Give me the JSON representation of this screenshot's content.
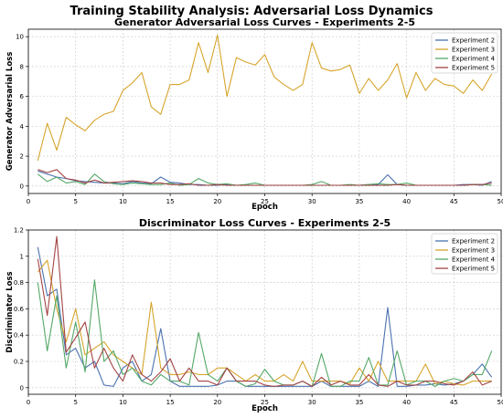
{
  "figure": {
    "suptitle": "Training Stability Analysis: Adversarial Loss Dynamics"
  },
  "colors": {
    "Experiment 2": "#4c72b0",
    "Experiment 3": "#d6a52b",
    "Experiment 4": "#55a868",
    "Experiment 5": "#a24444"
  },
  "chart_data": [
    {
      "type": "line",
      "title": "Generator Adversarial Loss Curves - Experiments 2-5",
      "xlabel": "Epoch",
      "ylabel": "Generator Adversarial Loss",
      "xlim": [
        0,
        50
      ],
      "ylim": [
        -0.5,
        10.5
      ],
      "xticks": [
        0,
        5,
        10,
        15,
        20,
        25,
        30,
        35,
        40,
        45,
        50
      ],
      "yticks": [
        0,
        2,
        4,
        6,
        8,
        10
      ],
      "grid": true,
      "legend": "top-right",
      "x": [
        1,
        2,
        3,
        4,
        5,
        6,
        7,
        8,
        9,
        10,
        11,
        12,
        13,
        14,
        15,
        16,
        17,
        18,
        19,
        20,
        21,
        22,
        23,
        24,
        25,
        26,
        27,
        28,
        29,
        30,
        31,
        32,
        33,
        34,
        35,
        36,
        37,
        38,
        39,
        40,
        41,
        42,
        43,
        44,
        45,
        46,
        47,
        48,
        49
      ],
      "series": [
        {
          "name": "Experiment 2",
          "values": [
            1.0,
            0.8,
            0.6,
            0.5,
            0.35,
            0.3,
            0.25,
            0.2,
            0.2,
            0.15,
            0.3,
            0.2,
            0.15,
            0.6,
            0.25,
            0.2,
            0.1,
            0.1,
            0.05,
            0.05,
            0.1,
            0.05,
            0.05,
            0.05,
            0.05,
            0.05,
            0.05,
            0.05,
            0.05,
            0.05,
            0.05,
            0.05,
            0.05,
            0.05,
            0.05,
            0.1,
            0.1,
            0.75,
            0.1,
            0.05,
            0.05,
            0.05,
            0.05,
            0.05,
            0.05,
            0.1,
            0.1,
            0.05,
            0.3
          ]
        },
        {
          "name": "Experiment 3",
          "values": [
            1.7,
            4.2,
            2.4,
            4.6,
            4.1,
            3.7,
            4.4,
            4.8,
            5.0,
            6.4,
            6.9,
            7.6,
            5.3,
            4.8,
            6.8,
            6.8,
            7.1,
            9.6,
            7.6,
            10.1,
            6.0,
            8.6,
            8.3,
            8.1,
            8.8,
            7.3,
            6.8,
            6.4,
            6.8,
            9.6,
            7.9,
            7.7,
            7.8,
            8.1,
            6.2,
            7.2,
            6.4,
            7.1,
            8.2,
            5.9,
            7.6,
            6.4,
            7.2,
            6.8,
            6.7,
            6.2,
            7.1,
            6.4,
            7.5
          ]
        },
        {
          "name": "Experiment 4",
          "values": [
            0.8,
            0.3,
            0.6,
            0.2,
            0.3,
            0.1,
            0.8,
            0.3,
            0.15,
            0.1,
            0.2,
            0.15,
            0.1,
            0.1,
            0.2,
            0.05,
            0.1,
            0.5,
            0.2,
            0.1,
            0.15,
            0.05,
            0.1,
            0.2,
            0.05,
            0.05,
            0.05,
            0.05,
            0.05,
            0.1,
            0.3,
            0.05,
            0.05,
            0.1,
            0.05,
            0.1,
            0.15,
            0.1,
            0.1,
            0.2,
            0.05,
            0.05,
            0.05,
            0.05,
            0.05,
            0.05,
            0.1,
            0.1,
            0.05
          ]
        },
        {
          "name": "Experiment 5",
          "values": [
            1.1,
            0.9,
            1.1,
            0.5,
            0.4,
            0.2,
            0.4,
            0.2,
            0.25,
            0.3,
            0.35,
            0.3,
            0.2,
            0.2,
            0.1,
            0.1,
            0.15,
            0.05,
            0.05,
            0.1,
            0.05,
            0.05,
            0.05,
            0.05,
            0.05,
            0.05,
            0.05,
            0.05,
            0.05,
            0.05,
            0.05,
            0.05,
            0.05,
            0.05,
            0.05,
            0.05,
            0.05,
            0.05,
            0.1,
            0.05,
            0.05,
            0.05,
            0.05,
            0.05,
            0.05,
            0.05,
            0.1,
            0.1,
            0.2
          ]
        }
      ]
    },
    {
      "type": "line",
      "title": "Discriminator Loss Curves - Experiments 2-5",
      "xlabel": "Epoch",
      "ylabel": "Discriminator Loss",
      "xlim": [
        0,
        50
      ],
      "ylim": [
        -0.05,
        1.2
      ],
      "xticks": [
        0,
        5,
        10,
        15,
        20,
        25,
        30,
        35,
        40,
        45,
        50
      ],
      "yticks": [
        0.0,
        0.2,
        0.4,
        0.6,
        0.8,
        1.0,
        1.2
      ],
      "grid": true,
      "legend": "top-right",
      "x": [
        1,
        2,
        3,
        4,
        5,
        6,
        7,
        8,
        9,
        10,
        11,
        12,
        13,
        14,
        15,
        16,
        17,
        18,
        19,
        20,
        21,
        22,
        23,
        24,
        25,
        26,
        27,
        28,
        29,
        30,
        31,
        32,
        33,
        34,
        35,
        36,
        37,
        38,
        39,
        40,
        41,
        42,
        43,
        44,
        45,
        46,
        47,
        48,
        49
      ],
      "series": [
        {
          "name": "Experiment 2",
          "values": [
            1.07,
            0.7,
            0.75,
            0.25,
            0.3,
            0.15,
            0.2,
            0.02,
            0.01,
            0.15,
            0.2,
            0.05,
            0.1,
            0.45,
            0.05,
            0.01,
            0.01,
            0.01,
            0.01,
            0.02,
            0.05,
            0.05,
            0.01,
            0.01,
            0.01,
            0.01,
            0.01,
            0.01,
            0.01,
            0.01,
            0.05,
            0.01,
            0.01,
            0.01,
            0.01,
            0.05,
            0.01,
            0.61,
            0.01,
            0.01,
            0.02,
            0.02,
            0.03,
            0.02,
            0.03,
            0.05,
            0.1,
            0.18,
            0.08
          ]
        },
        {
          "name": "Experiment 3",
          "values": [
            0.88,
            0.97,
            0.6,
            0.35,
            0.6,
            0.25,
            0.3,
            0.35,
            0.25,
            0.2,
            0.15,
            0.1,
            0.65,
            0.15,
            0.1,
            0.1,
            0.12,
            0.1,
            0.1,
            0.15,
            0.15,
            0.1,
            0.05,
            0.1,
            0.05,
            0.05,
            0.1,
            0.05,
            0.2,
            0.05,
            0.05,
            0.05,
            0.05,
            0.03,
            0.15,
            0.05,
            0.2,
            0.05,
            0.05,
            0.05,
            0.05,
            0.18,
            0.03,
            0.05,
            0.03,
            0.02,
            0.05,
            0.05,
            0.05
          ]
        },
        {
          "name": "Experiment 4",
          "values": [
            0.8,
            0.28,
            0.7,
            0.15,
            0.5,
            0.12,
            0.82,
            0.2,
            0.28,
            0.1,
            0.15,
            0.05,
            0.02,
            0.1,
            0.05,
            0.05,
            0.02,
            0.42,
            0.1,
            0.05,
            0.15,
            0.05,
            0.01,
            0.03,
            0.14,
            0.05,
            0.02,
            0.02,
            0.05,
            0.01,
            0.26,
            0.01,
            0.01,
            0.05,
            0.05,
            0.23,
            0.02,
            0.02,
            0.28,
            0.02,
            0.05,
            0.05,
            0.01,
            0.05,
            0.07,
            0.05,
            0.1,
            0.1,
            0.28
          ]
        },
        {
          "name": "Experiment 5",
          "values": [
            0.98,
            0.55,
            1.15,
            0.27,
            0.38,
            0.5,
            0.15,
            0.3,
            0.15,
            0.05,
            0.25,
            0.1,
            0.05,
            0.12,
            0.22,
            0.05,
            0.15,
            0.05,
            0.05,
            0.02,
            0.15,
            0.05,
            0.05,
            0.05,
            0.02,
            0.01,
            0.02,
            0.02,
            0.05,
            0.01,
            0.08,
            0.02,
            0.05,
            0.02,
            0.02,
            0.1,
            0.02,
            0.01,
            0.05,
            0.02,
            0.02,
            0.05,
            0.05,
            0.03,
            0.02,
            0.05,
            0.12,
            0.02,
            0.05
          ]
        }
      ]
    }
  ]
}
